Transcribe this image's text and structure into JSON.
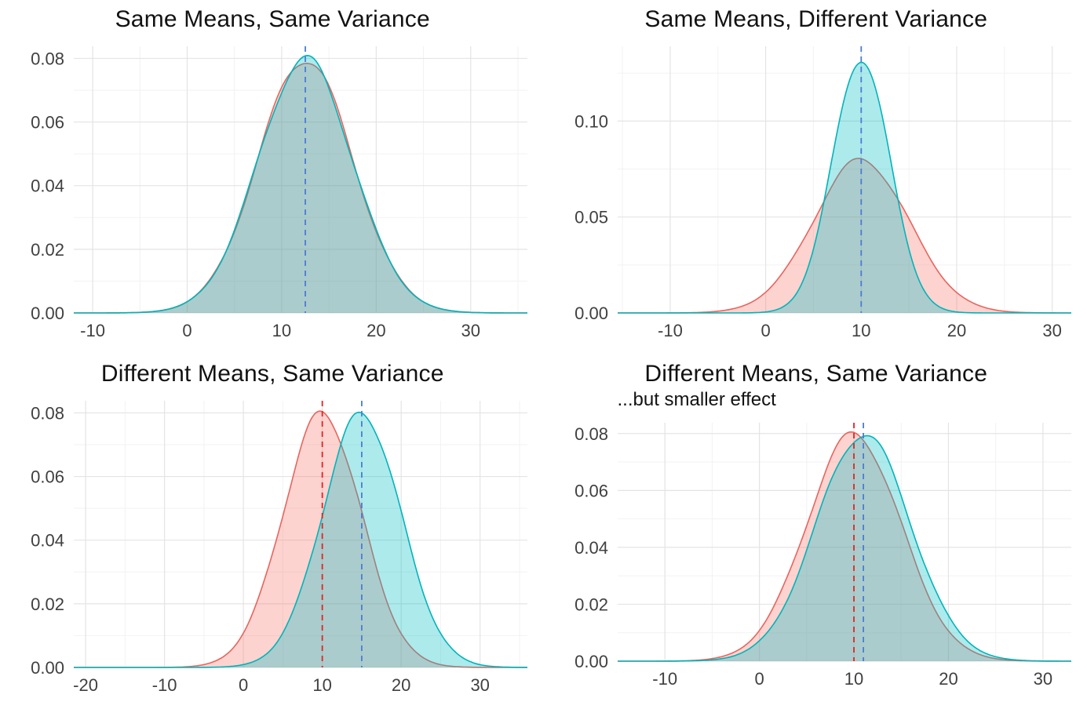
{
  "page": {
    "background": "#ffffff",
    "description": "Four density plot panels comparing pairs of normal distributions"
  },
  "palette": {
    "red_fill": "#F8766D",
    "teal_fill": "#00BFC4",
    "red_line": "#e8655d",
    "teal_line": "#00b4ba",
    "vline_red": "#e02424",
    "vline_blue": "#4a7cd6",
    "grid_major": "#e4e4e4",
    "grid_minor": "#f2f2f2",
    "axis_text": "#404040",
    "title_text": "#121212",
    "fill_opacity": 0.32
  },
  "chart_data": [
    {
      "id": "same-means-same-variance",
      "type": "area",
      "title": "Same Means, Same Variance",
      "subtitle": "",
      "xlabel": "",
      "ylabel": "",
      "xlim": [
        -12,
        36
      ],
      "ylim": [
        0,
        0.0838
      ],
      "xticks": [
        -10,
        0,
        10,
        20,
        30
      ],
      "xtick_labels": [
        "-10",
        "0",
        "10",
        "20",
        "30"
      ],
      "yticks": [
        0,
        0.02,
        0.04,
        0.06,
        0.08
      ],
      "ytick_labels": [
        "0.00",
        "0.02",
        "0.04",
        "0.06",
        "0.08"
      ],
      "series": [
        {
          "name": "red-density",
          "distribution": "normal",
          "mean": 12.5,
          "sd": 5,
          "peak": 0.08,
          "color_key": "red"
        },
        {
          "name": "teal-density",
          "distribution": "normal",
          "mean": 12.5,
          "sd": 5,
          "peak": 0.08,
          "color_key": "teal"
        }
      ],
      "mean_lines": [
        {
          "x": 12.5,
          "color_key": "blue"
        }
      ]
    },
    {
      "id": "same-means-different-variance",
      "type": "area",
      "title": "Same Means, Different Variance",
      "subtitle": "",
      "xlabel": "",
      "ylabel": "",
      "xlim": [
        -15.5,
        32
      ],
      "ylim": [
        0,
        0.139
      ],
      "xticks": [
        -10,
        0,
        10,
        20,
        30
      ],
      "xtick_labels": [
        "-10",
        "0",
        "10",
        "20",
        "30"
      ],
      "yticks": [
        0,
        0.05,
        0.1
      ],
      "ytick_labels": [
        "0.00",
        "0.05",
        "0.10"
      ],
      "series": [
        {
          "name": "red-density",
          "distribution": "normal",
          "mean": 10,
          "sd": 5,
          "peak": 0.08,
          "color_key": "red"
        },
        {
          "name": "teal-density",
          "distribution": "normal",
          "mean": 10,
          "sd": 3,
          "peak": 0.133,
          "color_key": "teal"
        }
      ],
      "mean_lines": [
        {
          "x": 10,
          "color_key": "blue"
        }
      ]
    },
    {
      "id": "different-means-same-variance",
      "type": "area",
      "title": "Different Means, Same Variance",
      "subtitle": "",
      "xlabel": "",
      "ylabel": "",
      "xlim": [
        -21.5,
        36
      ],
      "ylim": [
        0,
        0.0838
      ],
      "xticks": [
        -20,
        -10,
        0,
        10,
        20,
        30
      ],
      "xtick_labels": [
        "-20",
        "-10",
        "0",
        "10",
        "20",
        "30"
      ],
      "yticks": [
        0,
        0.02,
        0.04,
        0.06,
        0.08
      ],
      "ytick_labels": [
        "0.00",
        "0.02",
        "0.04",
        "0.06",
        "0.08"
      ],
      "series": [
        {
          "name": "red-density",
          "distribution": "normal",
          "mean": 10,
          "sd": 5,
          "peak": 0.08,
          "color_key": "red"
        },
        {
          "name": "teal-density",
          "distribution": "normal",
          "mean": 15,
          "sd": 5,
          "peak": 0.08,
          "color_key": "teal"
        }
      ],
      "mean_lines": [
        {
          "x": 10,
          "color_key": "red"
        },
        {
          "x": 15,
          "color_key": "blue"
        }
      ]
    },
    {
      "id": "different-means-same-variance-smaller-effect",
      "type": "area",
      "title": "Different Means, Same Variance",
      "subtitle": "...but smaller effect",
      "xlabel": "",
      "ylabel": "",
      "xlim": [
        -15,
        33
      ],
      "ylim": [
        0,
        0.0838
      ],
      "xticks": [
        -10,
        0,
        10,
        20,
        30
      ],
      "xtick_labels": [
        "-10",
        "0",
        "10",
        "20",
        "30"
      ],
      "yticks": [
        0,
        0.02,
        0.04,
        0.06,
        0.08
      ],
      "ytick_labels": [
        "0.00",
        "0.02",
        "0.04",
        "0.06",
        "0.08"
      ],
      "series": [
        {
          "name": "red-density",
          "distribution": "normal",
          "mean": 10,
          "sd": 5,
          "peak": 0.08,
          "color_key": "red"
        },
        {
          "name": "teal-density",
          "distribution": "normal",
          "mean": 11,
          "sd": 5,
          "peak": 0.08,
          "color_key": "teal"
        }
      ],
      "mean_lines": [
        {
          "x": 10,
          "color_key": "red"
        },
        {
          "x": 11,
          "color_key": "blue"
        }
      ]
    }
  ]
}
